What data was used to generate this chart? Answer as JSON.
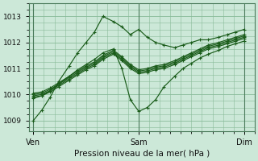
{
  "title": "Pression niveau de la mer( hPa )",
  "bg_color": "#cce8d8",
  "grid_color": "#88bb99",
  "line_color": "#1a5c1a",
  "xtick_labels": [
    "Ven",
    "Sam",
    "Dim"
  ],
  "xtick_positions": [
    0.0,
    0.5,
    1.0
  ],
  "yticks": [
    1009,
    1010,
    1011,
    1012,
    1013
  ],
  "ylim": [
    1008.6,
    1013.5
  ],
  "xlim": [
    -0.02,
    1.05
  ],
  "series": [
    {
      "x": [
        0.0,
        0.04,
        0.08,
        0.12,
        0.17,
        0.21,
        0.25,
        0.29,
        0.33,
        0.38,
        0.42,
        0.46,
        0.5,
        0.54,
        0.58,
        0.62,
        0.67,
        0.71,
        0.75,
        0.79,
        0.83,
        0.88,
        0.92,
        0.96,
        1.0
      ],
      "y": [
        1009.0,
        1009.4,
        1009.9,
        1010.5,
        1011.1,
        1011.6,
        1012.0,
        1012.4,
        1013.0,
        1012.8,
        1012.6,
        1012.3,
        1012.5,
        1012.2,
        1012.0,
        1011.9,
        1011.8,
        1011.9,
        1012.0,
        1012.1,
        1012.1,
        1012.2,
        1012.3,
        1012.4,
        1012.5
      ]
    },
    {
      "x": [
        0.0,
        0.04,
        0.08,
        0.12,
        0.17,
        0.21,
        0.25,
        0.29,
        0.33,
        0.38,
        0.42,
        0.46,
        0.5,
        0.54,
        0.58,
        0.62,
        0.67,
        0.71,
        0.75,
        0.79,
        0.83,
        0.88,
        0.92,
        0.96,
        1.0
      ],
      "y": [
        1009.9,
        1009.95,
        1010.1,
        1010.3,
        1010.55,
        1010.75,
        1010.95,
        1011.1,
        1011.35,
        1011.55,
        1011.3,
        1011.0,
        1010.8,
        1010.85,
        1010.95,
        1011.0,
        1011.15,
        1011.3,
        1011.45,
        1011.6,
        1011.75,
        1011.85,
        1011.95,
        1012.05,
        1012.15
      ]
    },
    {
      "x": [
        0.0,
        0.04,
        0.08,
        0.12,
        0.17,
        0.21,
        0.25,
        0.29,
        0.33,
        0.38,
        0.42,
        0.46,
        0.5,
        0.54,
        0.58,
        0.62,
        0.67,
        0.71,
        0.75,
        0.79,
        0.83,
        0.88,
        0.92,
        0.96,
        1.0
      ],
      "y": [
        1009.95,
        1010.0,
        1010.15,
        1010.35,
        1010.6,
        1010.8,
        1011.0,
        1011.15,
        1011.4,
        1011.6,
        1011.35,
        1011.05,
        1010.85,
        1010.9,
        1011.0,
        1011.05,
        1011.2,
        1011.35,
        1011.5,
        1011.65,
        1011.8,
        1011.9,
        1012.0,
        1012.1,
        1012.2
      ]
    },
    {
      "x": [
        0.0,
        0.04,
        0.08,
        0.12,
        0.17,
        0.21,
        0.25,
        0.29,
        0.33,
        0.38,
        0.42,
        0.46,
        0.5,
        0.54,
        0.58,
        0.62,
        0.67,
        0.71,
        0.75,
        0.79,
        0.83,
        0.88,
        0.92,
        0.96,
        1.0
      ],
      "y": [
        1010.0,
        1010.05,
        1010.2,
        1010.4,
        1010.65,
        1010.85,
        1011.05,
        1011.2,
        1011.45,
        1011.65,
        1011.4,
        1011.1,
        1010.9,
        1010.95,
        1011.05,
        1011.1,
        1011.25,
        1011.4,
        1011.55,
        1011.7,
        1011.85,
        1011.95,
        1012.05,
        1012.15,
        1012.25
      ]
    },
    {
      "x": [
        0.0,
        0.04,
        0.08,
        0.12,
        0.17,
        0.21,
        0.25,
        0.29,
        0.33,
        0.38,
        0.42,
        0.46,
        0.5,
        0.54,
        0.58,
        0.62,
        0.67,
        0.71,
        0.75,
        0.79,
        0.83,
        0.88,
        0.92,
        0.96,
        1.0
      ],
      "y": [
        1010.05,
        1010.1,
        1010.25,
        1010.45,
        1010.7,
        1010.9,
        1011.1,
        1011.25,
        1011.5,
        1011.7,
        1011.45,
        1011.15,
        1010.95,
        1011.0,
        1011.1,
        1011.15,
        1011.3,
        1011.45,
        1011.6,
        1011.75,
        1011.9,
        1012.0,
        1012.1,
        1012.2,
        1012.3
      ]
    },
    {
      "x": [
        0.0,
        0.04,
        0.08,
        0.12,
        0.17,
        0.21,
        0.25,
        0.29,
        0.33,
        0.38,
        0.42,
        0.46,
        0.5,
        0.54,
        0.58,
        0.62,
        0.67,
        0.71,
        0.75,
        0.79,
        0.83,
        0.88,
        0.92,
        0.96,
        1.0
      ],
      "y": [
        1009.85,
        1009.95,
        1010.15,
        1010.4,
        1010.7,
        1010.95,
        1011.15,
        1011.35,
        1011.6,
        1011.75,
        1011.0,
        1009.8,
        1009.35,
        1009.5,
        1009.8,
        1010.3,
        1010.7,
        1011.0,
        1011.2,
        1011.4,
        1011.55,
        1011.7,
        1011.85,
        1011.95,
        1012.05
      ]
    }
  ]
}
